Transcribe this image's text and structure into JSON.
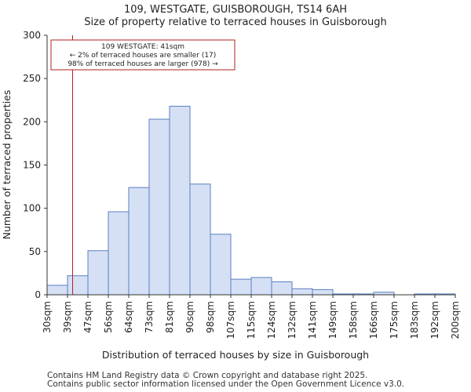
{
  "chart_data": {
    "type": "bar",
    "title": "109, WESTGATE, GUISBOROUGH, TS14 6AH",
    "subtitle": "Size of property relative to terraced houses in Guisborough",
    "xlabel": "Distribution of terraced houses by size in Guisborough",
    "ylabel": "Number of terraced properties",
    "ylim": [
      0,
      300
    ],
    "yticks": [
      0,
      50,
      100,
      150,
      200,
      250,
      300
    ],
    "xtick_labels": [
      "30sqm",
      "39sqm",
      "47sqm",
      "56sqm",
      "64sqm",
      "73sqm",
      "81sqm",
      "90sqm",
      "98sqm",
      "107sqm",
      "115sqm",
      "124sqm",
      "132sqm",
      "141sqm",
      "149sqm",
      "158sqm",
      "166sqm",
      "175sqm",
      "183sqm",
      "192sqm",
      "200sqm"
    ],
    "values": [
      11,
      22,
      51,
      96,
      124,
      203,
      218,
      128,
      70,
      18,
      20,
      15,
      7,
      6,
      1,
      1,
      3,
      0,
      1,
      1
    ],
    "bar_color": "#d6e0f5",
    "bar_edge": "#5a7fc0",
    "marker": {
      "bin_position": 1.25,
      "color": "#b22222"
    },
    "annotation": {
      "line1": "109 WESTGATE: 41sqm",
      "line2": "← 2% of terraced houses are smaller (17)",
      "line3": "98% of terraced houses are larger (978) →"
    }
  },
  "footer": {
    "line1": "Contains HM Land Registry data © Crown copyright and database right 2025.",
    "line2": "Contains public sector information licensed under the Open Government Licence v3.0."
  }
}
